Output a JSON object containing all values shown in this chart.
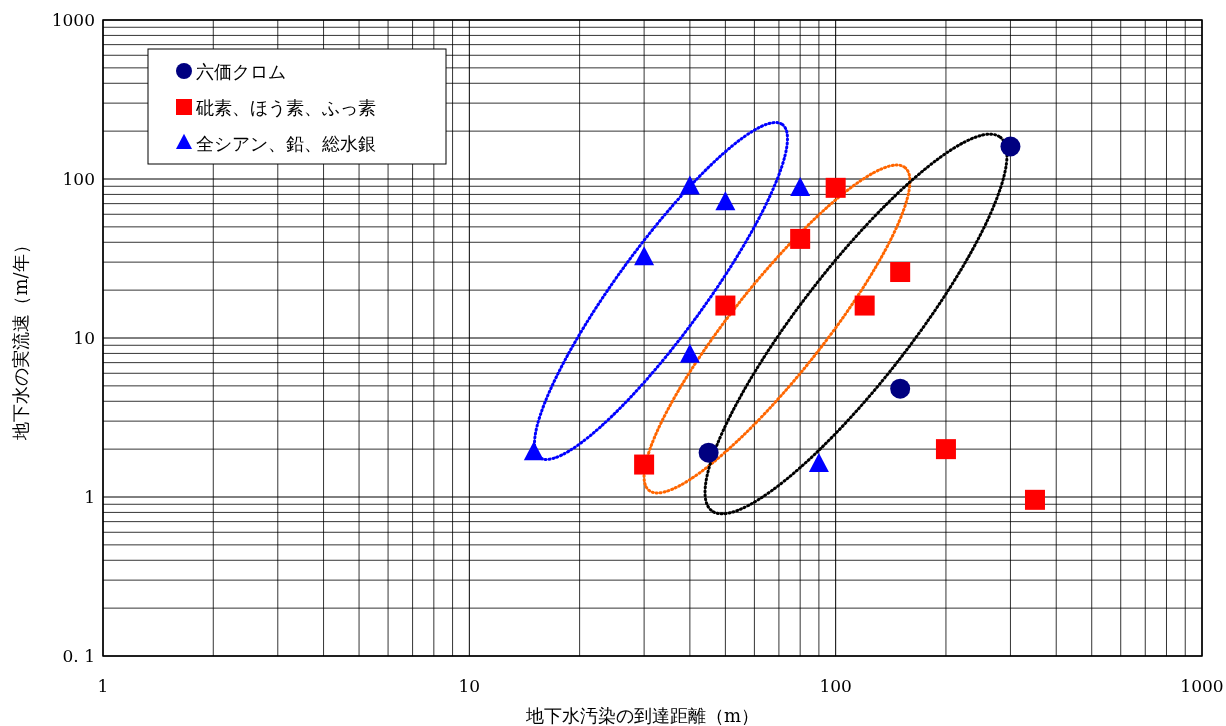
{
  "chart_data": {
    "type": "scatter",
    "xlabel": "地下水汚染の到達距離（m）",
    "ylabel": "地下水の実流速（m/年）",
    "log": "xy",
    "xlim": [
      1,
      1000
    ],
    "ylim": [
      0.1,
      1000
    ],
    "xticks": [
      1,
      10,
      100,
      1000
    ],
    "yticks": [
      {
        "value": 0.1,
        "label": "0. 1"
      },
      1,
      10,
      100,
      1000
    ],
    "grid": true,
    "legend": "top left",
    "series": [
      {
        "name": "六価クロム",
        "color": "#000080",
        "marker": "circle",
        "x": [
          45,
          150,
          300
        ],
        "values": [
          1.9,
          4.8,
          160
        ]
      },
      {
        "name": "砒素、ほう素、ふっ素",
        "color": "#ff0000",
        "marker": "square",
        "x": [
          30,
          50,
          80,
          100,
          120,
          150,
          200,
          350
        ],
        "values": [
          1.6,
          16,
          42,
          88,
          16,
          26,
          2.0,
          0.96
        ]
      },
      {
        "name": "全シアン、鉛、総水銀",
        "color": "#0000ff",
        "marker": "triangle",
        "x": [
          15,
          30,
          40,
          40,
          50,
          80,
          90
        ],
        "values": [
          1.9,
          32,
          89,
          7.8,
          71,
          87,
          1.6
        ]
      }
    ]
  }
}
